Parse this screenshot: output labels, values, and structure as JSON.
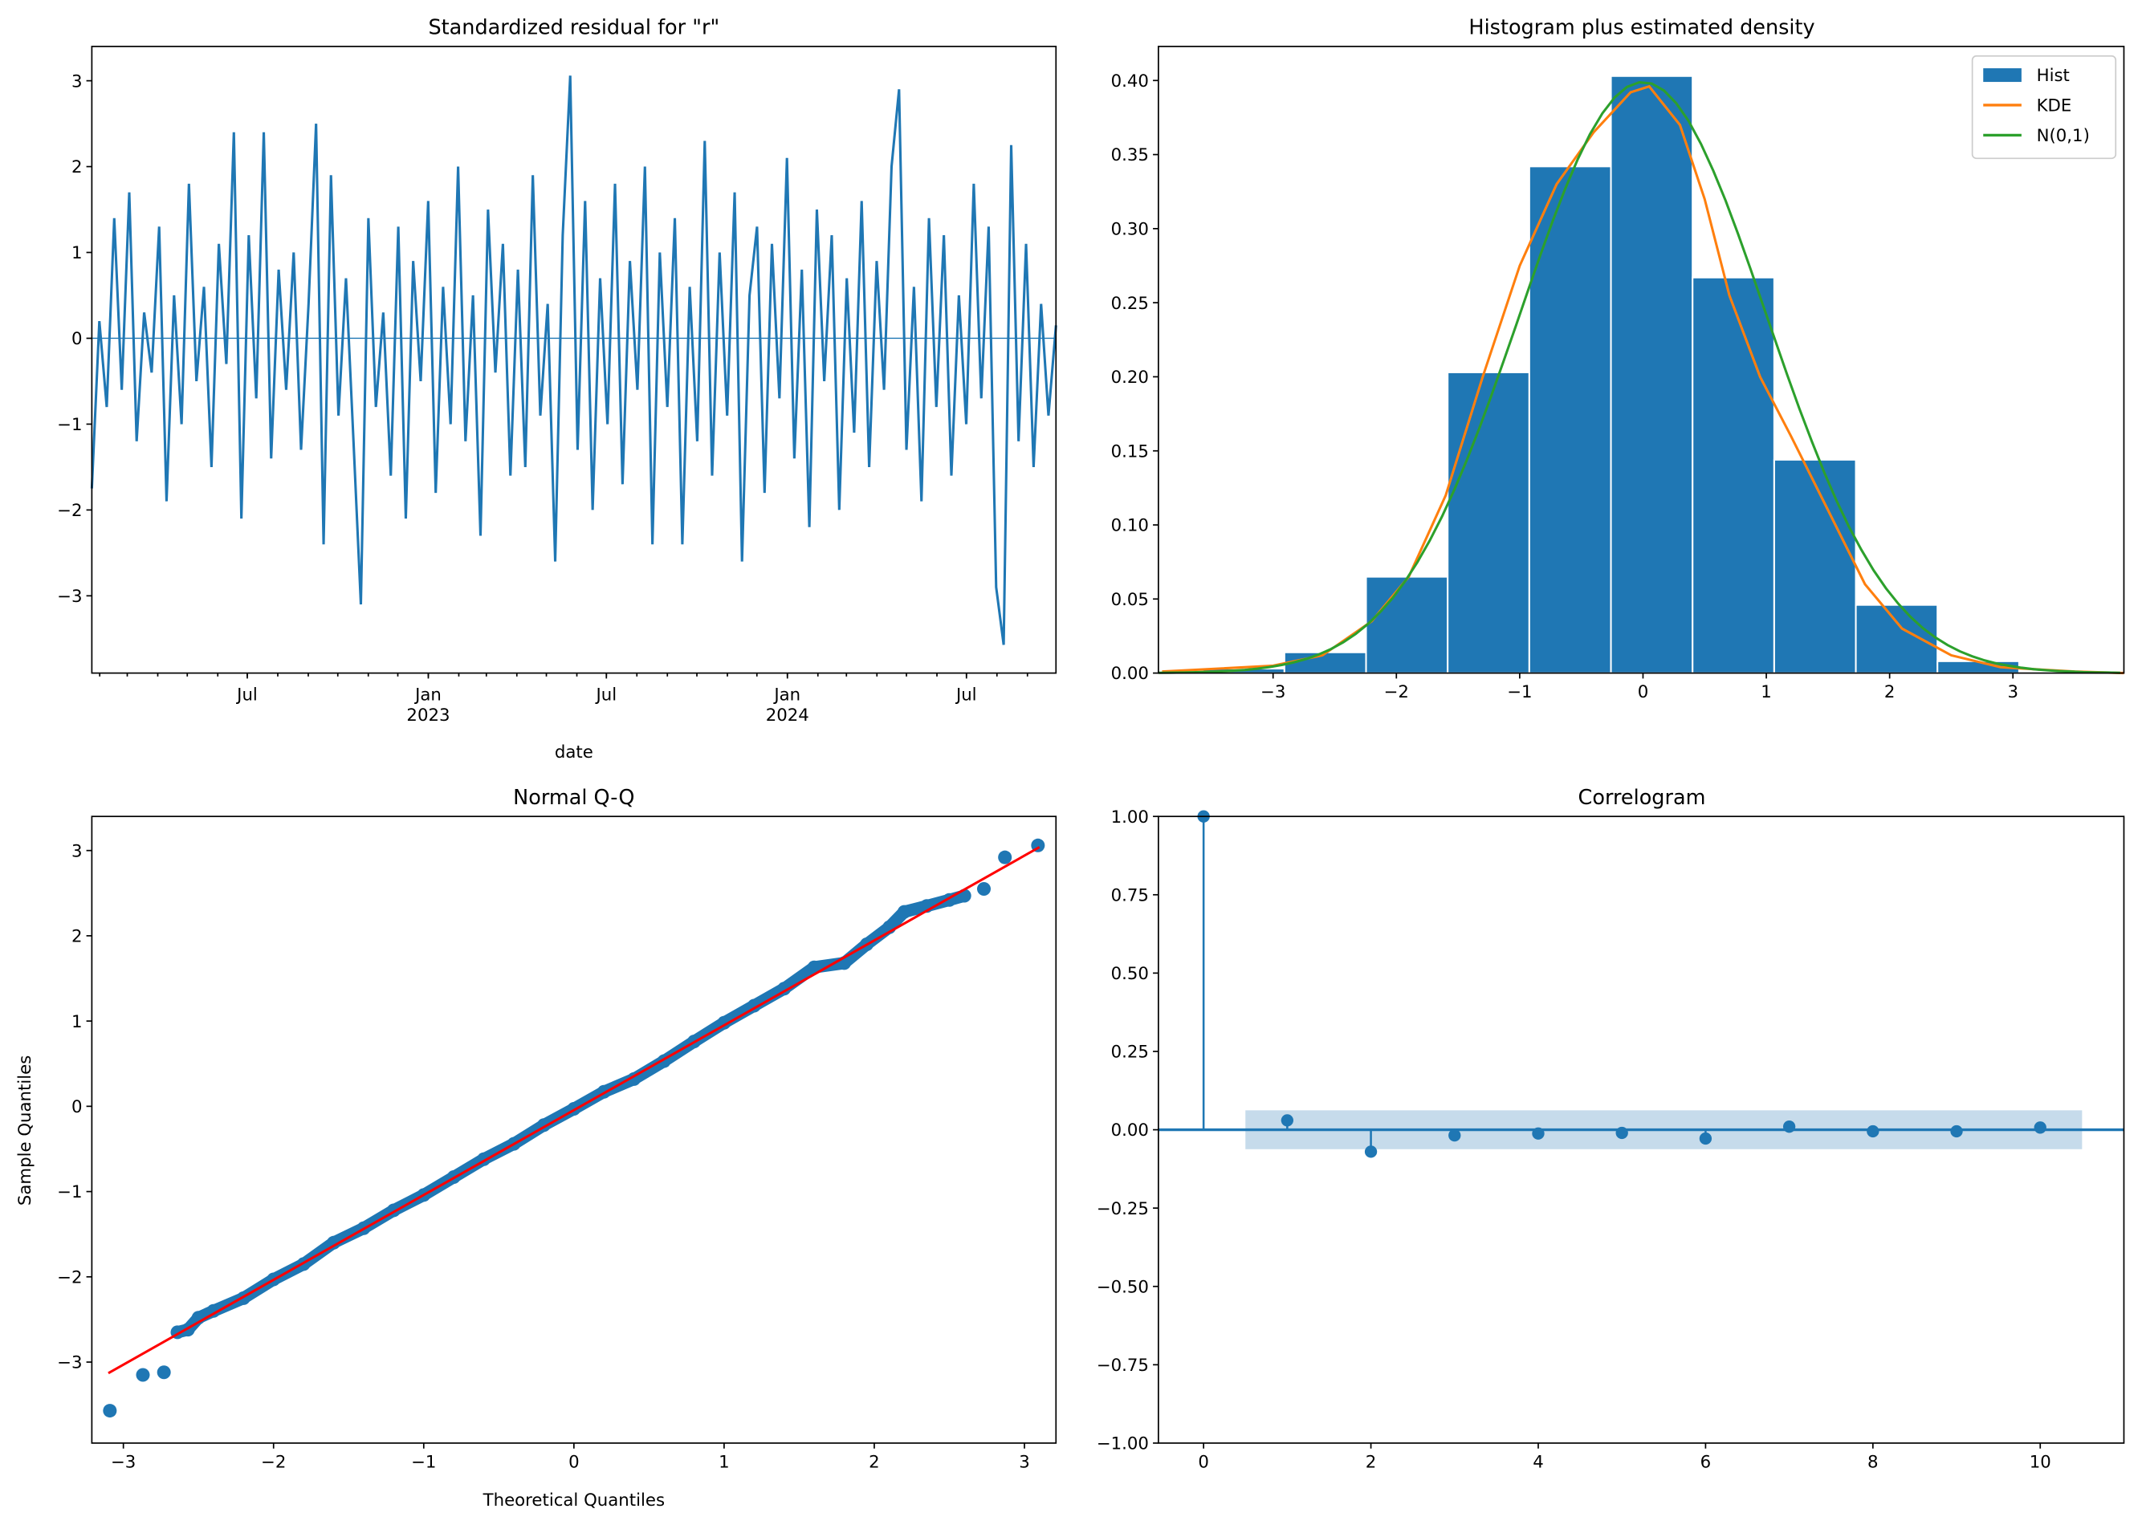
{
  "chart_data": [
    {
      "type": "line",
      "title": "Standardized residual for \"r\"",
      "xlabel": "date",
      "ylabel": "",
      "x_range": [
        "2022-01-24",
        "2024-09-30"
      ],
      "ylim": [
        -3.9,
        3.4
      ],
      "yticks": [
        -3,
        -2,
        -1,
        0,
        1,
        2,
        3
      ],
      "ytick_labels": [
        "−3",
        "−2",
        "−1",
        "0",
        "1",
        "2",
        "3"
      ],
      "xtick_labels": [
        {
          "date": "2022-07-01",
          "label": "Jul",
          "sub": ""
        },
        {
          "date": "2023-01-01",
          "label": "Jan",
          "sub": "2023"
        },
        {
          "date": "2023-07-01",
          "label": "Jul",
          "sub": ""
        },
        {
          "date": "2024-01-01",
          "label": "Jan",
          "sub": "2024"
        },
        {
          "date": "2024-07-01",
          "label": "Jul",
          "sub": ""
        }
      ],
      "color": "#1f77b4",
      "values": [
        -1.75,
        0.2,
        -0.8,
        1.4,
        -0.6,
        1.7,
        -1.2,
        0.3,
        -0.4,
        1.3,
        -1.9,
        0.5,
        -1.0,
        1.8,
        -0.5,
        0.6,
        -1.5,
        1.1,
        -0.3,
        2.4,
        -2.1,
        1.2,
        -0.7,
        2.4,
        -1.4,
        0.8,
        -0.6,
        1.0,
        -1.3,
        0.4,
        2.5,
        -2.4,
        1.9,
        -0.9,
        0.7,
        -1.2,
        -3.1,
        1.4,
        -0.8,
        0.3,
        -1.6,
        1.3,
        -2.1,
        0.9,
        -0.5,
        1.6,
        -1.8,
        0.6,
        -1.0,
        2.0,
        -1.2,
        0.5,
        -2.3,
        1.5,
        -0.4,
        1.1,
        -1.6,
        0.8,
        -1.5,
        1.9,
        -0.9,
        0.4,
        -2.6,
        1.2,
        3.06,
        -1.3,
        1.6,
        -2.0,
        0.7,
        -1.0,
        1.8,
        -1.7,
        0.9,
        -0.6,
        2.0,
        -2.4,
        1.0,
        -0.8,
        1.4,
        -2.4,
        0.6,
        -1.2,
        2.3,
        -1.6,
        1.0,
        -0.9,
        1.7,
        -2.6,
        0.5,
        1.3,
        -1.8,
        1.1,
        -0.7,
        2.1,
        -1.4,
        0.8,
        -2.2,
        1.5,
        -0.5,
        1.2,
        -2.0,
        0.7,
        -1.1,
        1.6,
        -1.5,
        0.9,
        -0.6,
        2.0,
        2.9,
        -1.3,
        0.6,
        -1.9,
        1.4,
        -0.8,
        1.2,
        -1.6,
        0.5,
        -1.0,
        1.8,
        -0.7,
        1.3,
        -2.9,
        -3.57,
        2.25,
        -1.2,
        1.1,
        -1.5,
        0.4,
        -0.9,
        0.15
      ]
    },
    {
      "type": "bar",
      "title": "Histogram plus estimated density",
      "xlim": [
        -3.93,
        3.9
      ],
      "ylim": [
        0,
        0.423
      ],
      "xticks": [
        -3,
        -2,
        -1,
        0,
        1,
        2,
        3
      ],
      "xtick_labels": [
        "−3",
        "−2",
        "−1",
        "0",
        "1",
        "2",
        "3"
      ],
      "yticks": [
        0,
        0.05,
        0.1,
        0.15,
        0.2,
        0.25,
        0.3,
        0.35,
        0.4
      ],
      "ytick_labels": [
        "0.00",
        "0.05",
        "0.10",
        "0.15",
        "0.20",
        "0.25",
        "0.30",
        "0.35",
        "0.40"
      ],
      "bin_edges": [
        -3.57,
        -2.908,
        -2.246,
        -1.584,
        -0.922,
        -0.26,
        0.402,
        1.064,
        1.726,
        2.388,
        3.05
      ],
      "hist_values": [
        0.003,
        0.014,
        0.065,
        0.203,
        0.342,
        0.403,
        0.267,
        0.144,
        0.046,
        0.008
      ],
      "kde": [
        [
          -3.9,
          0.001
        ],
        [
          -3.0,
          0.005
        ],
        [
          -2.6,
          0.012
        ],
        [
          -2.2,
          0.035
        ],
        [
          -1.9,
          0.065
        ],
        [
          -1.6,
          0.12
        ],
        [
          -1.3,
          0.2
        ],
        [
          -1.0,
          0.275
        ],
        [
          -0.7,
          0.33
        ],
        [
          -0.4,
          0.365
        ],
        [
          -0.1,
          0.392
        ],
        [
          0.05,
          0.396
        ],
        [
          0.3,
          0.37
        ],
        [
          0.5,
          0.32
        ],
        [
          0.7,
          0.255
        ],
        [
          0.95,
          0.2
        ],
        [
          1.2,
          0.16
        ],
        [
          1.5,
          0.11
        ],
        [
          1.8,
          0.06
        ],
        [
          2.1,
          0.03
        ],
        [
          2.5,
          0.012
        ],
        [
          2.9,
          0.004
        ],
        [
          3.5,
          0.001
        ],
        [
          3.9,
          0.0
        ]
      ],
      "legend": {
        "placement": "top-right",
        "entries": [
          "Hist",
          "KDE",
          "N(0,1)"
        ]
      },
      "colors": {
        "hist": "#1f77b4",
        "kde": "#ff7f0e",
        "normal": "#2ca02c"
      }
    },
    {
      "type": "scatter",
      "title": "Normal Q-Q",
      "xlabel": "Theoretical Quantiles",
      "ylabel": "Sample Quantiles",
      "xlim": [
        -3.21,
        3.21
      ],
      "ylim": [
        -3.95,
        3.4
      ],
      "xticks": [
        -3,
        -2,
        -1,
        0,
        1,
        2,
        3
      ],
      "xtick_labels": [
        "−3",
        "−2",
        "−1",
        "0",
        "1",
        "2",
        "3"
      ],
      "yticks": [
        -3,
        -2,
        -1,
        0,
        1,
        2,
        3
      ],
      "ytick_labels": [
        "−3",
        "−2",
        "−1",
        "0",
        "1",
        "2",
        "3"
      ],
      "points": [
        [
          -3.09,
          -3.57
        ],
        [
          -2.87,
          -3.15
        ],
        [
          -2.73,
          -3.12
        ],
        [
          -2.64,
          -2.65
        ],
        [
          -2.57,
          -2.62
        ],
        [
          -2.5,
          -2.48
        ],
        [
          -2.4,
          -2.4
        ],
        [
          -2.2,
          -2.25
        ],
        [
          -2.0,
          -2.03
        ],
        [
          -1.8,
          -1.85
        ],
        [
          -1.6,
          -1.6
        ],
        [
          -1.4,
          -1.43
        ],
        [
          -1.2,
          -1.22
        ],
        [
          -1.0,
          -1.04
        ],
        [
          -0.8,
          -0.83
        ],
        [
          -0.6,
          -0.62
        ],
        [
          -0.4,
          -0.44
        ],
        [
          -0.2,
          -0.22
        ],
        [
          0,
          -0.03
        ],
        [
          0.2,
          0.17
        ],
        [
          0.4,
          0.32
        ],
        [
          0.6,
          0.53
        ],
        [
          0.8,
          0.76
        ],
        [
          1.0,
          0.98
        ],
        [
          1.2,
          1.18
        ],
        [
          1.4,
          1.38
        ],
        [
          1.6,
          1.63
        ],
        [
          1.8,
          1.68
        ],
        [
          1.95,
          1.9
        ],
        [
          2.1,
          2.1
        ],
        [
          2.2,
          2.28
        ],
        [
          2.35,
          2.35
        ],
        [
          2.5,
          2.42
        ],
        [
          2.6,
          2.47
        ],
        [
          2.73,
          2.55
        ],
        [
          2.87,
          2.92
        ],
        [
          3.09,
          3.06
        ]
      ],
      "reference_line": [
        [
          -3.1,
          -3.13
        ],
        [
          3.1,
          3.04
        ]
      ],
      "colors": {
        "points": "#1f77b4",
        "line": "#ff0000"
      }
    },
    {
      "type": "bar",
      "title": "Correlogram",
      "xlim": [
        -0.54,
        11.0
      ],
      "ylim": [
        -1,
        1
      ],
      "xticks": [
        0,
        2,
        4,
        6,
        8,
        10
      ],
      "xtick_labels": [
        "0",
        "2",
        "4",
        "6",
        "8",
        "10"
      ],
      "yticks": [
        -1,
        -0.75,
        -0.5,
        -0.25,
        0,
        0.25,
        0.5,
        0.75,
        1
      ],
      "ytick_labels": [
        "−1.00",
        "−0.75",
        "−0.50",
        "−0.25",
        "0.00",
        "0.25",
        "0.50",
        "0.75",
        "1.00"
      ],
      "lags": [
        0,
        1,
        2,
        3,
        4,
        5,
        6,
        7,
        8,
        9,
        10
      ],
      "acf": [
        1.0,
        0.03,
        -0.07,
        -0.018,
        -0.012,
        -0.01,
        -0.028,
        0.01,
        -0.005,
        -0.005,
        0.007
      ],
      "confidence_band": 0.062,
      "band_lags": [
        0.5,
        10.5
      ],
      "colors": {
        "stem": "#1f77b4",
        "band": "#c6dbeb"
      }
    }
  ]
}
